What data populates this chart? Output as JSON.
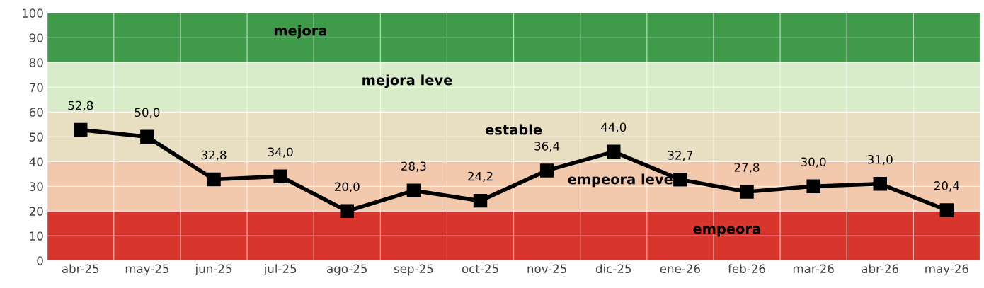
{
  "chart_data": {
    "type": "line",
    "categories": [
      "abr-25",
      "may-25",
      "jun-25",
      "jul-25",
      "ago-25",
      "sep-25",
      "oct-25",
      "nov-25",
      "dic-25",
      "ene-26",
      "feb-26",
      "mar-26",
      "abr-26",
      "may-26"
    ],
    "series": [
      {
        "color": "#000000",
        "values": [
          52.8,
          50.0,
          32.8,
          34.0,
          20.0,
          28.3,
          24.2,
          36.4,
          44.0,
          32.7,
          27.8,
          30.0,
          31.0,
          20.4
        ],
        "value_labels": [
          "52,8",
          "50,0",
          "32,8",
          "34,0",
          "20,0",
          "28,3",
          "24,2",
          "36,4",
          "44,0",
          "32,7",
          "27,8",
          "30,0",
          "31,0",
          "20,4"
        ]
      }
    ],
    "ylim": [
      0,
      100
    ],
    "yticks": [
      0,
      10,
      20,
      30,
      40,
      50,
      60,
      70,
      80,
      90,
      100
    ],
    "bands": [
      {
        "axis": "y",
        "from": 80,
        "to": 100,
        "label": "mejora",
        "color": "#3f9a4a"
      },
      {
        "axis": "y",
        "from": 60,
        "to": 80,
        "label": "mejora leve",
        "color": "#d8ecc9"
      },
      {
        "axis": "y",
        "from": 40,
        "to": 60,
        "label": "estable",
        "color": "#e8dfc2"
      },
      {
        "axis": "y",
        "from": 20,
        "to": 40,
        "label": "empeora leve",
        "color": "#f2c9ad"
      },
      {
        "axis": "y",
        "from": 0,
        "to": 20,
        "label": "empeora",
        "color": "#d8352c"
      }
    ],
    "grid": true,
    "marker": "square",
    "line_style": "solid",
    "legend": false
  }
}
